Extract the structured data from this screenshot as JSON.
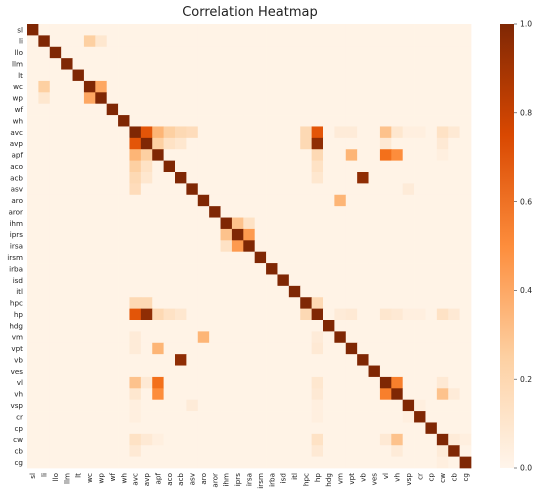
{
  "chart_data": {
    "type": "heatmap",
    "title": "Correlation Heatmap",
    "labels": [
      "sl",
      "li",
      "llo",
      "llm",
      "lt",
      "wc",
      "wp",
      "wf",
      "wh",
      "avc",
      "avp",
      "apf",
      "aco",
      "acb",
      "asv",
      "aro",
      "aror",
      "ihm",
      "iprs",
      "irsa",
      "irsm",
      "irba",
      "isd",
      "itl",
      "hpc",
      "hp",
      "hdg",
      "vm",
      "vpt",
      "vb",
      "ves",
      "vl",
      "vh",
      "vsp",
      "cr",
      "cp",
      "cw",
      "cb",
      "cg"
    ],
    "diagonal_value": 1.0,
    "default_value": 0.02,
    "pairs": [
      {
        "a": "li",
        "b": "wc",
        "value": 0.25
      },
      {
        "a": "li",
        "b": "wp",
        "value": 0.12
      },
      {
        "a": "wc",
        "b": "wp",
        "value": 0.4
      },
      {
        "a": "avc",
        "b": "avp",
        "value": 0.7
      },
      {
        "a": "avc",
        "b": "apf",
        "value": 0.35
      },
      {
        "a": "avc",
        "b": "aco",
        "value": 0.25
      },
      {
        "a": "avc",
        "b": "acb",
        "value": 0.2
      },
      {
        "a": "avc",
        "b": "asv",
        "value": 0.18
      },
      {
        "a": "avc",
        "b": "hp",
        "value": 0.7
      },
      {
        "a": "avc",
        "b": "hpc",
        "value": 0.2
      },
      {
        "a": "avc",
        "b": "vl",
        "value": 0.3
      },
      {
        "a": "avc",
        "b": "vh",
        "value": 0.12
      },
      {
        "a": "avc",
        "b": "cw",
        "value": 0.15
      },
      {
        "a": "avc",
        "b": "cb",
        "value": 0.1
      },
      {
        "a": "avc",
        "b": "vpt",
        "value": 0.08
      },
      {
        "a": "avc",
        "b": "vm",
        "value": 0.08
      },
      {
        "a": "avc",
        "b": "cr",
        "value": 0.05
      },
      {
        "a": "avc",
        "b": "vsp",
        "value": 0.05
      },
      {
        "a": "avp",
        "b": "apf",
        "value": 0.25
      },
      {
        "a": "avp",
        "b": "aco",
        "value": 0.15
      },
      {
        "a": "avp",
        "b": "acb",
        "value": 0.12
      },
      {
        "a": "avp",
        "b": "hp",
        "value": 0.95
      },
      {
        "a": "avp",
        "b": "hpc",
        "value": 0.2
      },
      {
        "a": "avp",
        "b": "vl",
        "value": 0.1
      },
      {
        "a": "avp",
        "b": "cw",
        "value": 0.1
      },
      {
        "a": "apf",
        "b": "vpt",
        "value": 0.35
      },
      {
        "a": "apf",
        "b": "vl",
        "value": 0.6
      },
      {
        "a": "apf",
        "b": "vh",
        "value": 0.5
      },
      {
        "a": "apf",
        "b": "hp",
        "value": 0.2
      },
      {
        "a": "aco",
        "b": "hp",
        "value": 0.15
      },
      {
        "a": "acb",
        "b": "vb",
        "value": 0.95
      },
      {
        "a": "acb",
        "b": "hp",
        "value": 0.12
      },
      {
        "a": "aro",
        "b": "vm",
        "value": 0.35
      },
      {
        "a": "ihm",
        "b": "iprs",
        "value": 0.3
      },
      {
        "a": "ihm",
        "b": "irsa",
        "value": 0.15
      },
      {
        "a": "iprs",
        "b": "irsa",
        "value": 0.45
      },
      {
        "a": "asv",
        "b": "vsp",
        "value": 0.08
      },
      {
        "a": "vl",
        "b": "vh",
        "value": 0.55
      },
      {
        "a": "vl",
        "b": "cw",
        "value": 0.1
      },
      {
        "a": "vh",
        "b": "cw",
        "value": 0.3
      },
      {
        "a": "vh",
        "b": "cb",
        "value": 0.08
      },
      {
        "a": "hp",
        "b": "cw",
        "value": 0.15
      },
      {
        "a": "hp",
        "b": "vpt",
        "value": 0.1
      },
      {
        "a": "hp",
        "b": "vl",
        "value": 0.12
      },
      {
        "a": "hpc",
        "b": "hp",
        "value": 0.2
      },
      {
        "a": "hp",
        "b": "vh",
        "value": 0.1
      },
      {
        "a": "hp",
        "b": "cb",
        "value": 0.1
      },
      {
        "a": "hp",
        "b": "cr",
        "value": 0.05
      },
      {
        "a": "hp",
        "b": "vsp",
        "value": 0.05
      },
      {
        "a": "hp",
        "b": "vm",
        "value": 0.08
      },
      {
        "a": "apf",
        "b": "cw",
        "value": 0.05
      },
      {
        "a": "cw",
        "b": "cb",
        "value": 0.08
      },
      {
        "a": "cw",
        "b": "cg",
        "value": 0.05
      },
      {
        "a": "vsp",
        "b": "cr",
        "value": 0.05
      }
    ],
    "colorbar": {
      "min": 0.0,
      "max": 1.0,
      "ticks": [
        "0.0",
        "0.2",
        "0.4",
        "0.6",
        "0.8",
        "1.0"
      ]
    },
    "colors": {
      "low": "#fff5eb",
      "mid1": "#fdd0a2",
      "mid2": "#fd8d3c",
      "mid3": "#d94801",
      "high": "#7f2704"
    },
    "xlabel": "",
    "ylabel": ""
  }
}
